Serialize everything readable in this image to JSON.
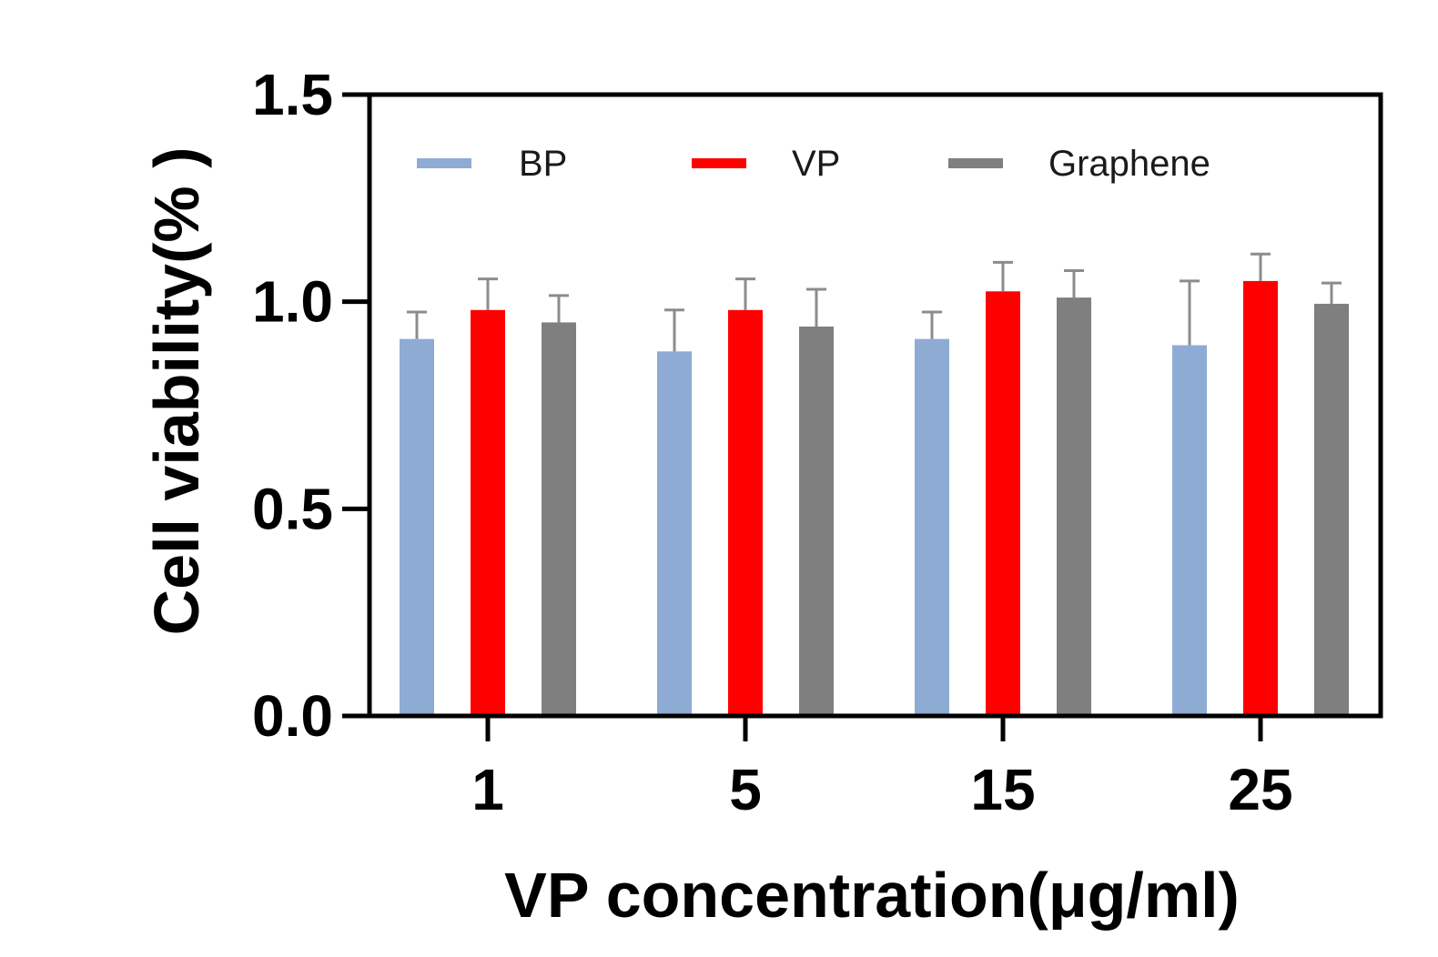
{
  "chart_data": {
    "type": "bar",
    "title": "",
    "xlabel": "VP concentration(μg/ml)",
    "ylabel": "Cell viability(% )",
    "categories": [
      "1",
      "5",
      "15",
      "25"
    ],
    "ylim": [
      0,
      1.5
    ],
    "yticks": [
      0.0,
      0.5,
      1.0,
      1.5
    ],
    "ytick_labels": [
      "0.0",
      "0.5",
      "1.0",
      "1.5"
    ],
    "grid": false,
    "legend_position": "top",
    "series": [
      {
        "name": "BP",
        "color": "#8eabd3",
        "values": [
          0.91,
          0.88,
          0.91,
          0.895
        ],
        "errors": [
          0.065,
          0.1,
          0.065,
          0.155
        ]
      },
      {
        "name": "VP",
        "color": "#ff0000",
        "values": [
          0.98,
          0.98,
          1.025,
          1.05
        ],
        "errors": [
          0.075,
          0.075,
          0.07,
          0.065
        ]
      },
      {
        "name": "Graphene",
        "color": "#7f7f7f",
        "values": [
          0.95,
          0.94,
          1.01,
          0.995
        ],
        "errors": [
          0.065,
          0.09,
          0.065,
          0.05
        ]
      }
    ],
    "error_color": "#8c8c8c"
  }
}
